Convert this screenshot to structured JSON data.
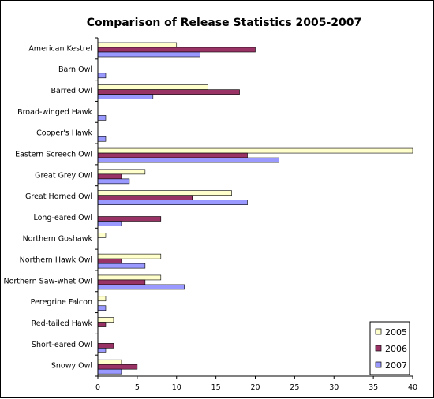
{
  "chart_data": {
    "type": "bar",
    "orientation": "horizontal",
    "title": "Comparison of Release Statistics 2005-2007",
    "xlabel": "",
    "ylabel": "",
    "xlim": [
      0,
      40
    ],
    "x_ticks": [
      0,
      5,
      10,
      15,
      20,
      25,
      30,
      35,
      40
    ],
    "grid": false,
    "legend_position": "bottom-right",
    "categories": [
      "American Kestrel",
      "Barn Owl",
      "Barred Owl",
      "Broad-winged Hawk",
      "Cooper's Hawk",
      "Eastern Screech Owl",
      "Great Grey Owl",
      "Great Horned Owl",
      "Long-eared Owl",
      "Northern Goshawk",
      "Northern Hawk Owl",
      "Northern Saw-whet Owl",
      "Peregrine Falcon",
      "Red-tailed Hawk",
      "Short-eared Owl",
      "Snowy Owl"
    ],
    "series": [
      {
        "name": "2005",
        "color": "#FFFFCC",
        "values": [
          10,
          0,
          14,
          0,
          0,
          40,
          6,
          17,
          0,
          1,
          8,
          8,
          1,
          2,
          0,
          3
        ]
      },
      {
        "name": "2006",
        "color": "#993366",
        "values": [
          20,
          0,
          18,
          0,
          0,
          19,
          3,
          12,
          8,
          0,
          3,
          6,
          0,
          1,
          2,
          5
        ]
      },
      {
        "name": "2007",
        "color": "#9999FF",
        "values": [
          13,
          1,
          7,
          1,
          1,
          23,
          4,
          19,
          3,
          0,
          6,
          11,
          1,
          0,
          1,
          3
        ]
      }
    ]
  }
}
